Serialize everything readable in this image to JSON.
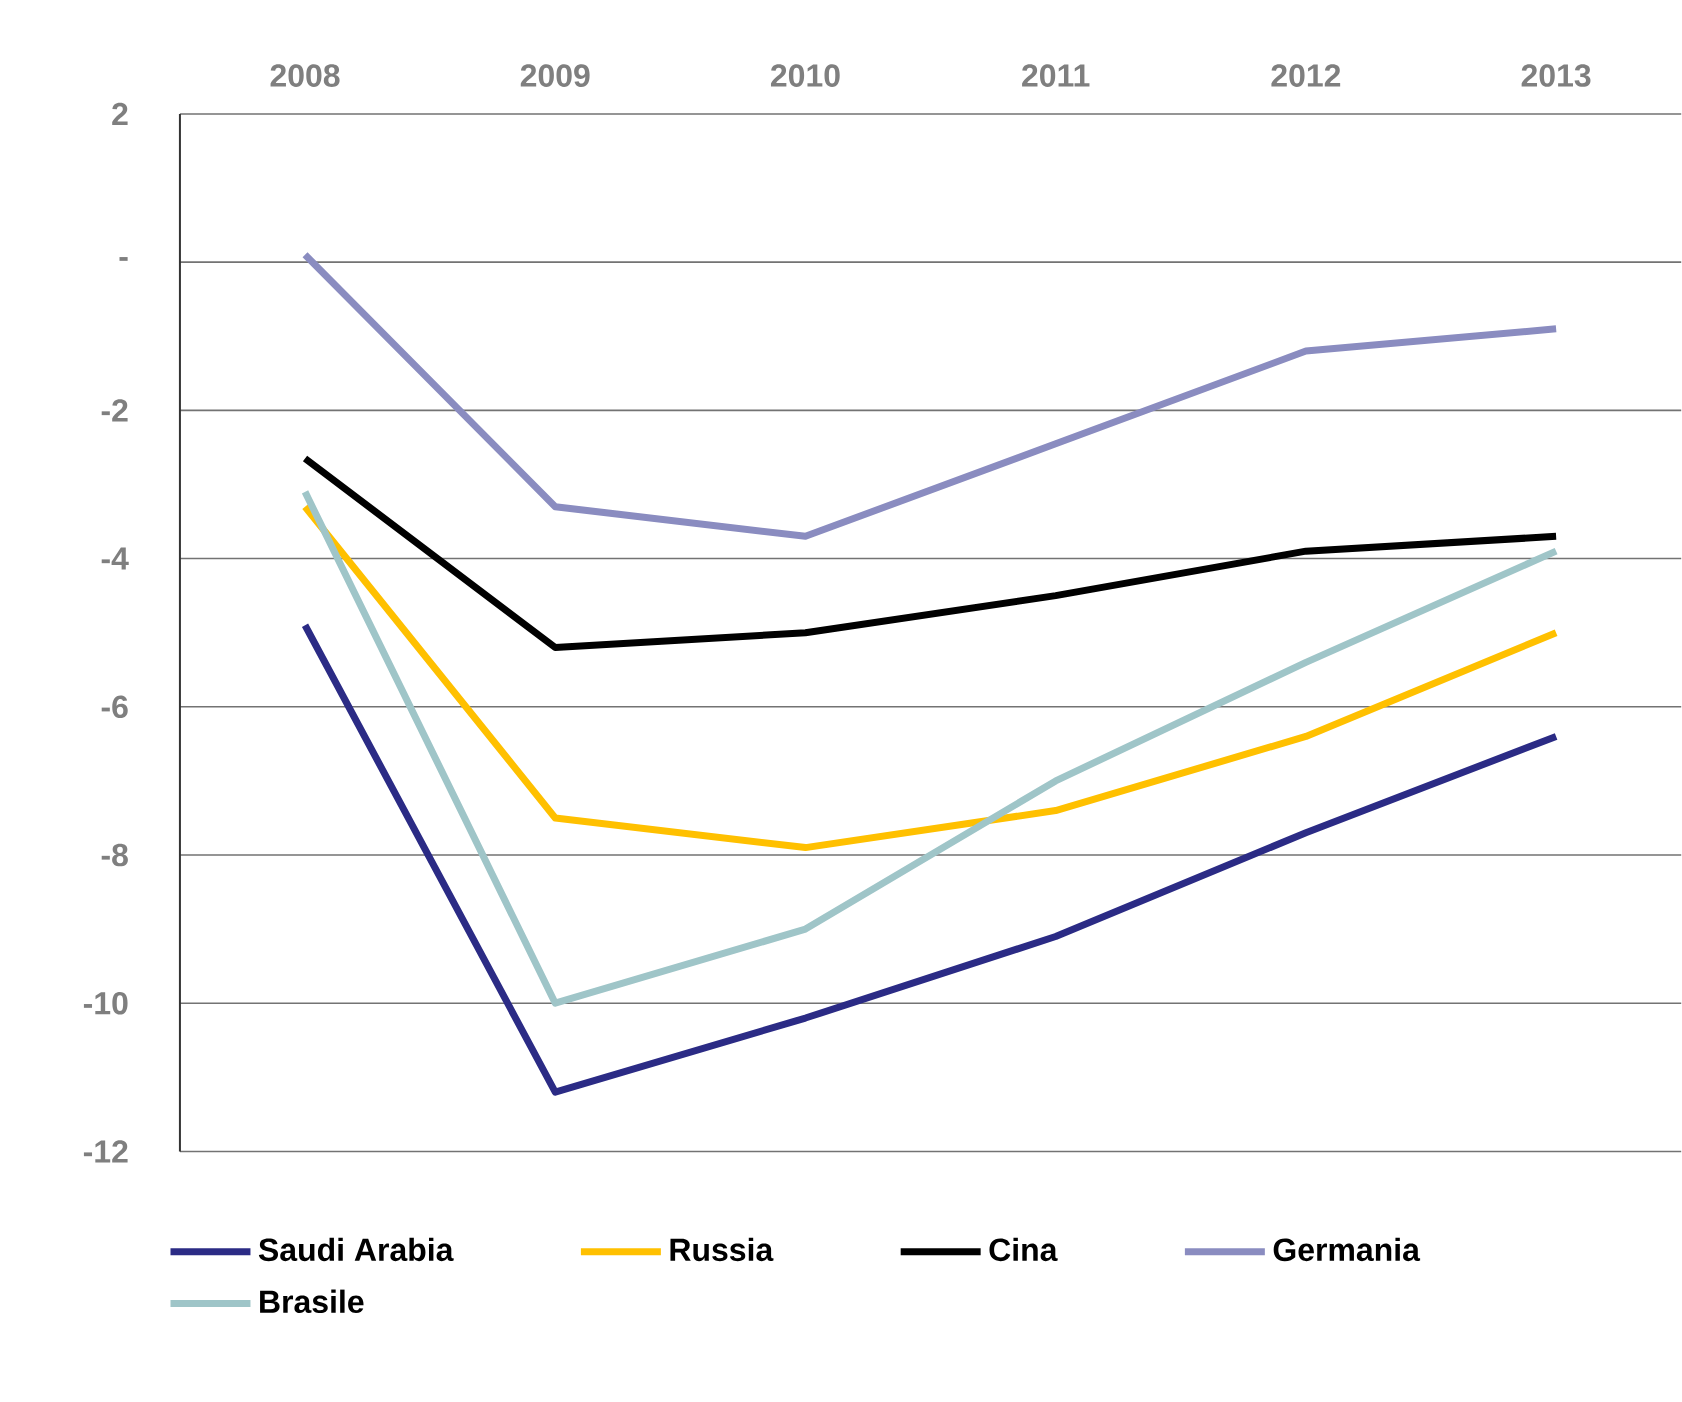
{
  "chart_data": {
    "type": "line",
    "categories": [
      "2008",
      "2009",
      "2010",
      "2011",
      "2012",
      "2013"
    ],
    "ylim": [
      -12,
      2
    ],
    "yticks": [
      2,
      {
        "value": 0,
        "label": "-"
      },
      -2,
      -4,
      -6,
      -8,
      -10,
      -12
    ],
    "grid": "y",
    "legend": "bottom",
    "marker": "none",
    "line_style": "solid",
    "series": [
      {
        "name": "Saudi Arabia",
        "color": "#2b2b85",
        "values": [
          -4.9,
          -11.2,
          -10.2,
          -9.1,
          -7.7,
          -6.4
        ]
      },
      {
        "name": "Russia",
        "color": "#ffc000",
        "values": [
          -3.3,
          -7.5,
          -7.9,
          -7.4,
          -6.4,
          -5.0
        ]
      },
      {
        "name": "Cina",
        "color": "#000000",
        "values": [
          -2.65,
          -5.2,
          -5.0,
          -4.5,
          -3.9,
          -3.7
        ]
      },
      {
        "name": "Germania",
        "color": "#8a8cc0",
        "values": [
          0.1,
          -3.3,
          -3.7,
          -2.45,
          -1.2,
          -0.9
        ]
      },
      {
        "name": "Brasile",
        "color": "#9fc5c8",
        "values": [
          -3.1,
          -10.0,
          -9.0,
          -7.0,
          -5.4,
          -3.9
        ]
      }
    ]
  }
}
